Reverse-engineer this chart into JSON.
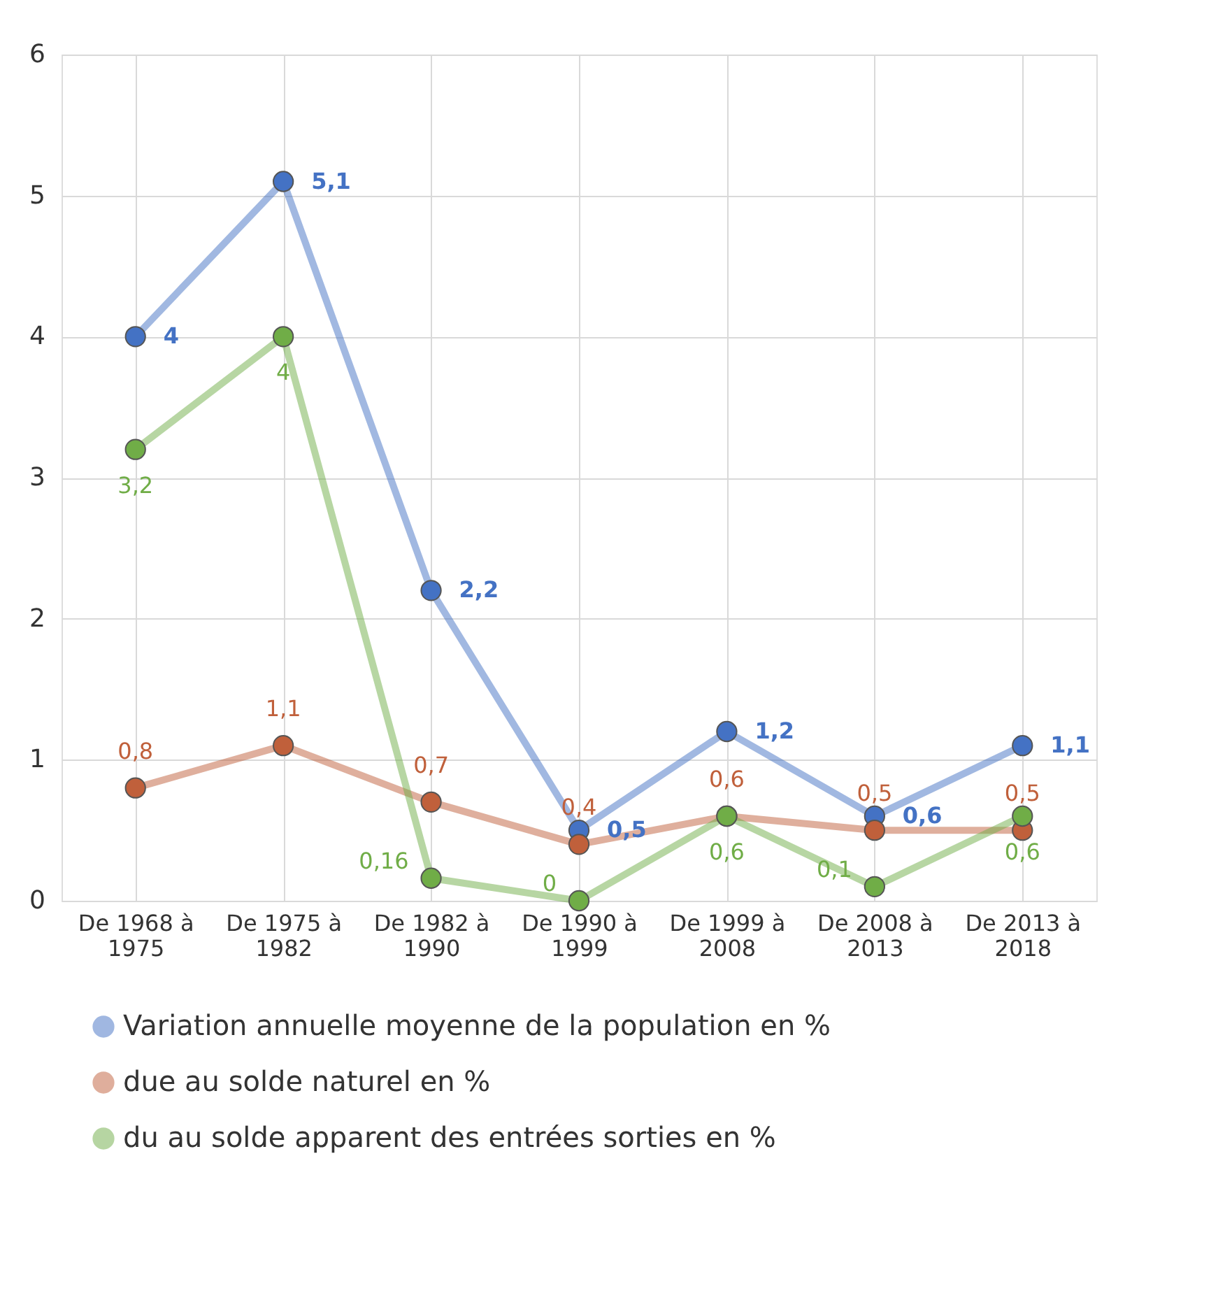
{
  "chart_data": {
    "type": "line",
    "categories": [
      "De 1968 à 1975",
      "De 1975 à 1982",
      "De 1982 à 1990",
      "De 1990 à 1999",
      "De 1999 à 2008",
      "De 2008 à 2013",
      "De 2013 à 2018"
    ],
    "series": [
      {
        "name": "Variation annuelle moyenne de la population en %",
        "color": "#4472c4",
        "values": [
          4,
          5.1,
          2.2,
          0.5,
          1.2,
          0.6,
          1.1
        ],
        "value_labels": [
          "4",
          "5,1",
          "2,2",
          "0,5",
          "1,2",
          "0,6",
          "1,1"
        ]
      },
      {
        "name": "due au solde naturel en %",
        "color": "#c0603b",
        "values": [
          0.8,
          1.1,
          0.7,
          0.4,
          0.6,
          0.5,
          0.5
        ],
        "value_labels": [
          "0,8",
          "1,1",
          "0,7",
          "0,4",
          "0,6",
          "0,5",
          "0,5"
        ]
      },
      {
        "name": "du au solde apparent des entrées sorties en %",
        "color": "#70ad47",
        "values": [
          3.2,
          4,
          0.16,
          0,
          0.6,
          0.1,
          0.6
        ],
        "value_labels": [
          "3,2",
          "4",
          "0,16",
          "0",
          "0,6",
          "0,1",
          "0,6"
        ]
      }
    ],
    "ylim": [
      0,
      6
    ],
    "yticks": [
      0,
      1,
      2,
      3,
      4,
      5,
      6
    ],
    "grid": true,
    "legend": "bottom",
    "marker": "circle",
    "line_style": "solid"
  }
}
